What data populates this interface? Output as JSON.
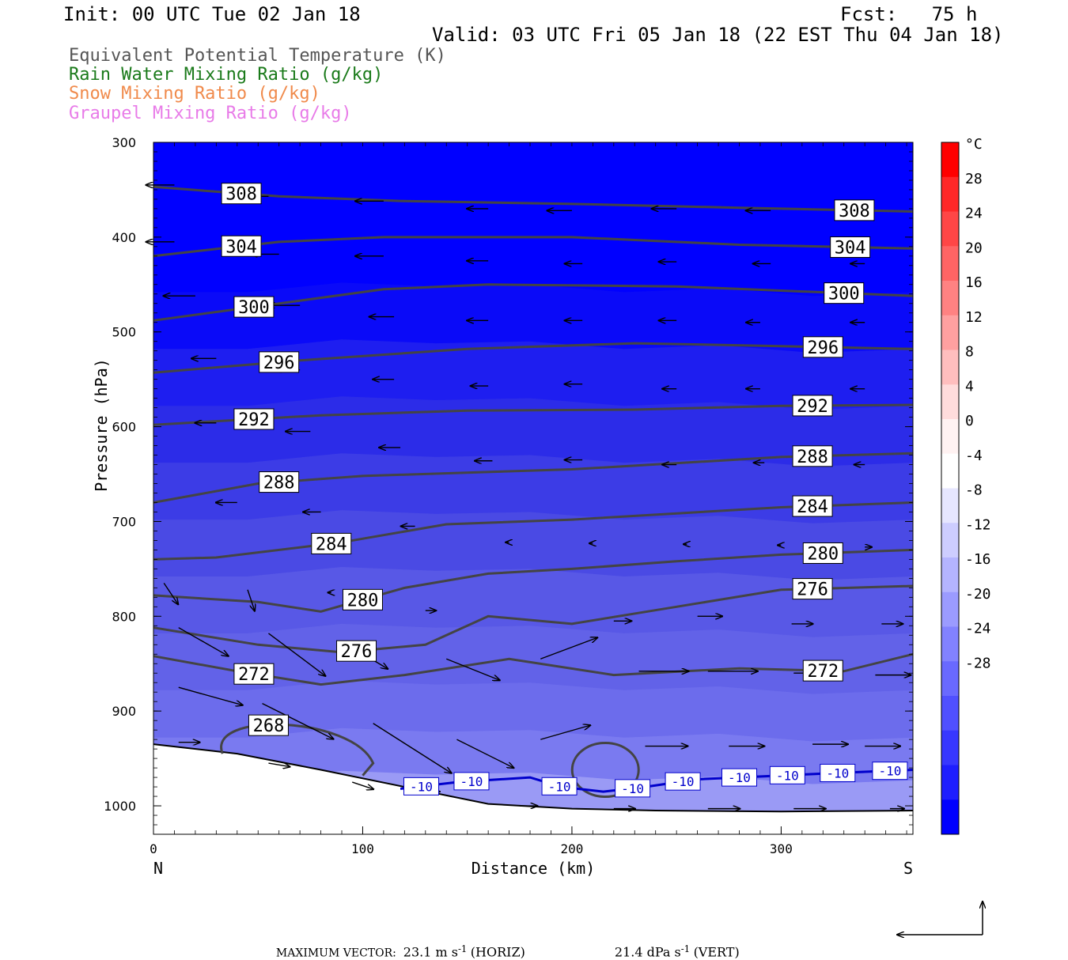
{
  "header": {
    "init": "Init: 00 UTC Tue 02 Jan 18",
    "fcst": "Fcst:   75 h",
    "valid": "Valid: 03 UTC Fri 05 Jan 18 (22 EST Thu 04 Jan 18)"
  },
  "legend": [
    {
      "label": "Equivalent Potential Temperature (K)",
      "color": "#555555"
    },
    {
      "label": "Rain Water Mixing Ratio (g/kg)",
      "color": "#1a7a1a"
    },
    {
      "label": "Snow Mixing Ratio (g/kg)",
      "color": "#f08a4b"
    },
    {
      "label": "Graupel Mixing Ratio (g/kg)",
      "color": "#e87be8"
    }
  ],
  "footer": {
    "max_vector_label": "MAXIMUM VECTOR:",
    "horiz": "23.1 m s",
    "horiz_sup": "-1",
    "horiz_tag": "(HORIZ)",
    "vert": "21.4 dPa s",
    "vert_sup": "-1",
    "vert_tag": "(VERT)"
  },
  "chart_data": {
    "type": "contour-cross-section",
    "xlabel": "Distance (km)",
    "ylabel": "Pressure (hPa)",
    "xlim": [
      0,
      363
    ],
    "ylim": [
      300,
      1030
    ],
    "xticks": [
      0,
      100,
      200,
      300
    ],
    "yticks": [
      300,
      400,
      500,
      600,
      700,
      800,
      900,
      1000
    ],
    "x_end_labels": {
      "left": "N",
      "right": "S"
    },
    "colorbar": {
      "unit": "°C",
      "ticks": [
        28,
        24,
        20,
        16,
        12,
        8,
        4,
        0,
        -4,
        -8,
        -12,
        -16,
        -20,
        -24,
        -28
      ],
      "colors": [
        "#ff0000",
        "#ff2828",
        "#ff4646",
        "#ff6464",
        "#ff8282",
        "#ffa0a0",
        "#ffbebe",
        "#ffdcdc",
        "#fff2f2",
        "#ffffff",
        "#e6e6ff",
        "#cdcdff",
        "#b4b4ff",
        "#9b9bff",
        "#8282ff",
        "#6969ff",
        "#5050ff",
        "#3737ff",
        "#1e1eff",
        "#0000ff"
      ]
    },
    "theta_e_contours": [
      {
        "value": 308,
        "x": [
          0,
          60,
          120,
          200,
          280,
          363
        ],
        "p": [
          347,
          357,
          362,
          365,
          369,
          373
        ]
      },
      {
        "value": 304,
        "x": [
          0,
          60,
          110,
          200,
          280,
          363
        ],
        "p": [
          420,
          405,
          400,
          400,
          408,
          412
        ]
      },
      {
        "value": 300,
        "x": [
          0,
          60,
          110,
          160,
          250,
          363
        ],
        "p": [
          488,
          470,
          455,
          450,
          452,
          462
        ]
      },
      {
        "value": 296,
        "x": [
          0,
          70,
          150,
          230,
          300,
          363
        ],
        "p": [
          543,
          530,
          518,
          512,
          515,
          518
        ]
      },
      {
        "value": 292,
        "x": [
          0,
          80,
          150,
          230,
          300,
          363
        ],
        "p": [
          598,
          588,
          583,
          582,
          578,
          577
        ]
      },
      {
        "value": 288,
        "x": [
          0,
          50,
          100,
          200,
          300,
          363
        ],
        "p": [
          680,
          660,
          652,
          645,
          632,
          628
        ]
      },
      {
        "value": 284,
        "x": [
          0,
          30,
          90,
          140,
          200,
          300,
          363
        ],
        "p": [
          740,
          738,
          722,
          703,
          698,
          685,
          680
        ]
      },
      {
        "value": 280,
        "x": [
          0,
          50,
          80,
          120,
          160,
          200,
          250,
          300,
          363
        ],
        "p": [
          778,
          785,
          795,
          770,
          755,
          750,
          742,
          735,
          730
        ]
      },
      {
        "value": 276,
        "x": [
          0,
          50,
          90,
          130,
          160,
          200,
          250,
          300,
          363
        ],
        "p": [
          812,
          830,
          838,
          830,
          800,
          808,
          790,
          772,
          768
        ]
      },
      {
        "value": 272,
        "x": [
          0,
          40,
          80,
          120,
          170,
          220,
          280,
          330,
          363
        ],
        "p": [
          842,
          858,
          872,
          862,
          845,
          862,
          855,
          858,
          840
        ]
      }
    ],
    "theta_e_label_positions": [
      {
        "value": 308,
        "x": [
          42,
          335
        ]
      },
      {
        "value": 304,
        "x": [
          42,
          333
        ]
      },
      {
        "value": 300,
        "x": [
          48,
          330
        ]
      },
      {
        "value": 296,
        "x": [
          60,
          320
        ]
      },
      {
        "value": 292,
        "x": [
          48,
          315
        ]
      },
      {
        "value": 288,
        "x": [
          60,
          315
        ]
      },
      {
        "value": 284,
        "x": [
          85,
          315
        ]
      },
      {
        "value": 280,
        "x": [
          100,
          320
        ]
      },
      {
        "value": 276,
        "x": [
          97,
          315
        ]
      },
      {
        "value": 272,
        "x": [
          48,
          320
        ]
      },
      {
        "value": 268,
        "x": [
          55
        ]
      }
    ],
    "isotherm_minus10": {
      "label": "-10",
      "x": [
        118,
        145,
        180,
        195,
        215,
        235,
        260,
        300,
        330,
        363
      ],
      "p": [
        982,
        975,
        970,
        980,
        985,
        980,
        972,
        968,
        965,
        962
      ],
      "label_x": [
        128,
        152,
        194,
        229,
        253,
        280,
        303,
        327,
        352
      ]
    },
    "terrain_p": {
      "x": [
        0,
        40,
        80,
        120,
        160,
        200,
        240,
        300,
        363
      ],
      "p": [
        935,
        945,
        962,
        980,
        998,
        1003,
        1005,
        1006,
        1005
      ]
    },
    "wind_vectors": [
      {
        "x": 10,
        "p": 345,
        "u": -8,
        "w": 0
      },
      {
        "x": 55,
        "p": 357,
        "u": -8,
        "w": 0
      },
      {
        "x": 110,
        "p": 362,
        "u": -8,
        "w": 0
      },
      {
        "x": 160,
        "p": 370,
        "u": -6,
        "w": 0
      },
      {
        "x": 200,
        "p": 372,
        "u": -7,
        "w": 0
      },
      {
        "x": 250,
        "p": 370,
        "u": -7,
        "w": 0
      },
      {
        "x": 295,
        "p": 372,
        "u": -7,
        "w": 0
      },
      {
        "x": 340,
        "p": 373,
        "u": -6,
        "w": 0
      },
      {
        "x": 10,
        "p": 405,
        "u": -8,
        "w": 0
      },
      {
        "x": 60,
        "p": 418,
        "u": -8,
        "w": 0
      },
      {
        "x": 110,
        "p": 420,
        "u": -8,
        "w": 0
      },
      {
        "x": 160,
        "p": 425,
        "u": -6,
        "w": 0
      },
      {
        "x": 205,
        "p": 428,
        "u": -5,
        "w": 0
      },
      {
        "x": 250,
        "p": 426,
        "u": -5,
        "w": 0
      },
      {
        "x": 295,
        "p": 428,
        "u": -5,
        "w": 0
      },
      {
        "x": 340,
        "p": 428,
        "u": -4,
        "w": 0
      },
      {
        "x": 20,
        "p": 462,
        "u": -9,
        "w": 0
      },
      {
        "x": 70,
        "p": 472,
        "u": -9,
        "w": 0
      },
      {
        "x": 115,
        "p": 484,
        "u": -7,
        "w": 0
      },
      {
        "x": 160,
        "p": 488,
        "u": -6,
        "w": 0
      },
      {
        "x": 205,
        "p": 488,
        "u": -5,
        "w": 0
      },
      {
        "x": 250,
        "p": 488,
        "u": -5,
        "w": 0
      },
      {
        "x": 290,
        "p": 490,
        "u": -4,
        "w": 0
      },
      {
        "x": 340,
        "p": 490,
        "u": -4,
        "w": 0
      },
      {
        "x": 30,
        "p": 528,
        "u": -7,
        "w": 0
      },
      {
        "x": 70,
        "p": 540,
        "u": -7,
        "w": 0
      },
      {
        "x": 115,
        "p": 550,
        "u": -6,
        "w": 0
      },
      {
        "x": 160,
        "p": 557,
        "u": -5,
        "w": 0
      },
      {
        "x": 205,
        "p": 555,
        "u": -5,
        "w": 0
      },
      {
        "x": 250,
        "p": 560,
        "u": -4,
        "w": 0
      },
      {
        "x": 290,
        "p": 560,
        "u": -4,
        "w": 0
      },
      {
        "x": 340,
        "p": 560,
        "u": -4,
        "w": 0
      },
      {
        "x": 30,
        "p": 596,
        "u": -6,
        "w": 0
      },
      {
        "x": 75,
        "p": 605,
        "u": -7,
        "w": 0
      },
      {
        "x": 118,
        "p": 622,
        "u": -6,
        "w": 0
      },
      {
        "x": 162,
        "p": 636,
        "u": -5,
        "w": 0
      },
      {
        "x": 205,
        "p": 635,
        "u": -5,
        "w": 0
      },
      {
        "x": 250,
        "p": 640,
        "u": -4,
        "w": 0
      },
      {
        "x": 292,
        "p": 638,
        "u": -3,
        "w": 0
      },
      {
        "x": 340,
        "p": 640,
        "u": -3,
        "w": 0
      },
      {
        "x": 40,
        "p": 680,
        "u": -6,
        "w": 0
      },
      {
        "x": 80,
        "p": 690,
        "u": -5,
        "w": 0
      },
      {
        "x": 125,
        "p": 705,
        "u": -4,
        "w": 0
      },
      {
        "x": 170,
        "p": 722,
        "u": -1,
        "w": 0
      },
      {
        "x": 210,
        "p": 723,
        "u": -1,
        "w": 0
      },
      {
        "x": 255,
        "p": 724,
        "u": -1,
        "w": 0
      },
      {
        "x": 300,
        "p": 725,
        "u": -1,
        "w": 0
      },
      {
        "x": 340,
        "p": 727,
        "u": 2,
        "w": 0
      },
      {
        "x": 5,
        "p": 765,
        "u": 4,
        "w": -6
      },
      {
        "x": 45,
        "p": 772,
        "u": 2,
        "w": -6
      },
      {
        "x": 85,
        "p": 775,
        "u": -1,
        "w": 0
      },
      {
        "x": 130,
        "p": 794,
        "u": 3,
        "w": 0
      },
      {
        "x": 220,
        "p": 805,
        "u": 5,
        "w": 0
      },
      {
        "x": 260,
        "p": 800,
        "u": 7,
        "w": 0
      },
      {
        "x": 305,
        "p": 808,
        "u": 6,
        "w": 0
      },
      {
        "x": 348,
        "p": 808,
        "u": 6,
        "w": 0
      },
      {
        "x": 12,
        "p": 812,
        "u": 14,
        "w": -8
      },
      {
        "x": 55,
        "p": 818,
        "u": 16,
        "w": -12
      },
      {
        "x": 95,
        "p": 833,
        "u": 10,
        "w": -6
      },
      {
        "x": 140,
        "p": 845,
        "u": 15,
        "w": -6
      },
      {
        "x": 185,
        "p": 845,
        "u": 16,
        "w": 6
      },
      {
        "x": 232,
        "p": 858,
        "u": 14,
        "w": 0
      },
      {
        "x": 265,
        "p": 858,
        "u": 14,
        "w": 0
      },
      {
        "x": 306,
        "p": 860,
        "u": 12,
        "w": 0
      },
      {
        "x": 345,
        "p": 862,
        "u": 10,
        "w": 0
      },
      {
        "x": 12,
        "p": 875,
        "u": 18,
        "w": -5
      },
      {
        "x": 52,
        "p": 892,
        "u": 20,
        "w": -10
      },
      {
        "x": 105,
        "p": 913,
        "u": 22,
        "w": -14
      },
      {
        "x": 145,
        "p": 930,
        "u": 16,
        "w": -8
      },
      {
        "x": 185,
        "p": 930,
        "u": 14,
        "w": 4
      },
      {
        "x": 235,
        "p": 937,
        "u": 12,
        "w": 0
      },
      {
        "x": 275,
        "p": 937,
        "u": 10,
        "w": 0
      },
      {
        "x": 315,
        "p": 935,
        "u": 10,
        "w": 0
      },
      {
        "x": 340,
        "p": 937,
        "u": 10,
        "w": 0
      },
      {
        "x": 12,
        "p": 933,
        "u": 6,
        "w": 0
      },
      {
        "x": 55,
        "p": 955,
        "u": 6,
        "w": -1
      },
      {
        "x": 95,
        "p": 975,
        "u": 6,
        "w": -2
      },
      {
        "x": 130,
        "p": 985,
        "u": 4,
        "w": 0
      },
      {
        "x": 175,
        "p": 1000,
        "u": 5,
        "w": 0
      },
      {
        "x": 220,
        "p": 1003,
        "u": 6,
        "w": 0
      },
      {
        "x": 265,
        "p": 1003,
        "u": 9,
        "w": 0
      },
      {
        "x": 306,
        "p": 1003,
        "u": 9,
        "w": 0
      },
      {
        "x": 352,
        "p": 1003,
        "u": 4,
        "w": 0
      }
    ]
  }
}
